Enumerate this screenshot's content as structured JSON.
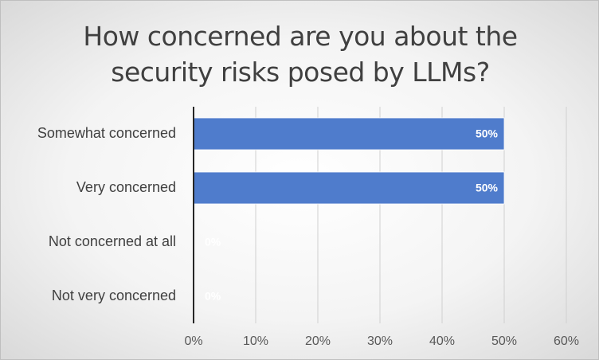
{
  "chart_data": {
    "type": "bar",
    "orientation": "horizontal",
    "title": "How concerned are you about the security risks posed by LLMs?",
    "categories": [
      "Somewhat concerned",
      "Very concerned",
      "Not concerned at all",
      "Not very concerned"
    ],
    "values": [
      50,
      50,
      0,
      0
    ],
    "value_labels": [
      "50%",
      "50%",
      "0%",
      "0%"
    ],
    "color": "#4f7ccc",
    "xlim": [
      0,
      60
    ],
    "xticks": [
      {
        "value": 0,
        "label": "0%"
      },
      {
        "value": 10,
        "label": "10%"
      },
      {
        "value": 20,
        "label": "20%"
      },
      {
        "value": 30,
        "label": "30%"
      },
      {
        "value": 40,
        "label": "40%"
      },
      {
        "value": 50,
        "label": "50%"
      },
      {
        "value": 60,
        "label": "60%"
      }
    ],
    "grid": true
  }
}
